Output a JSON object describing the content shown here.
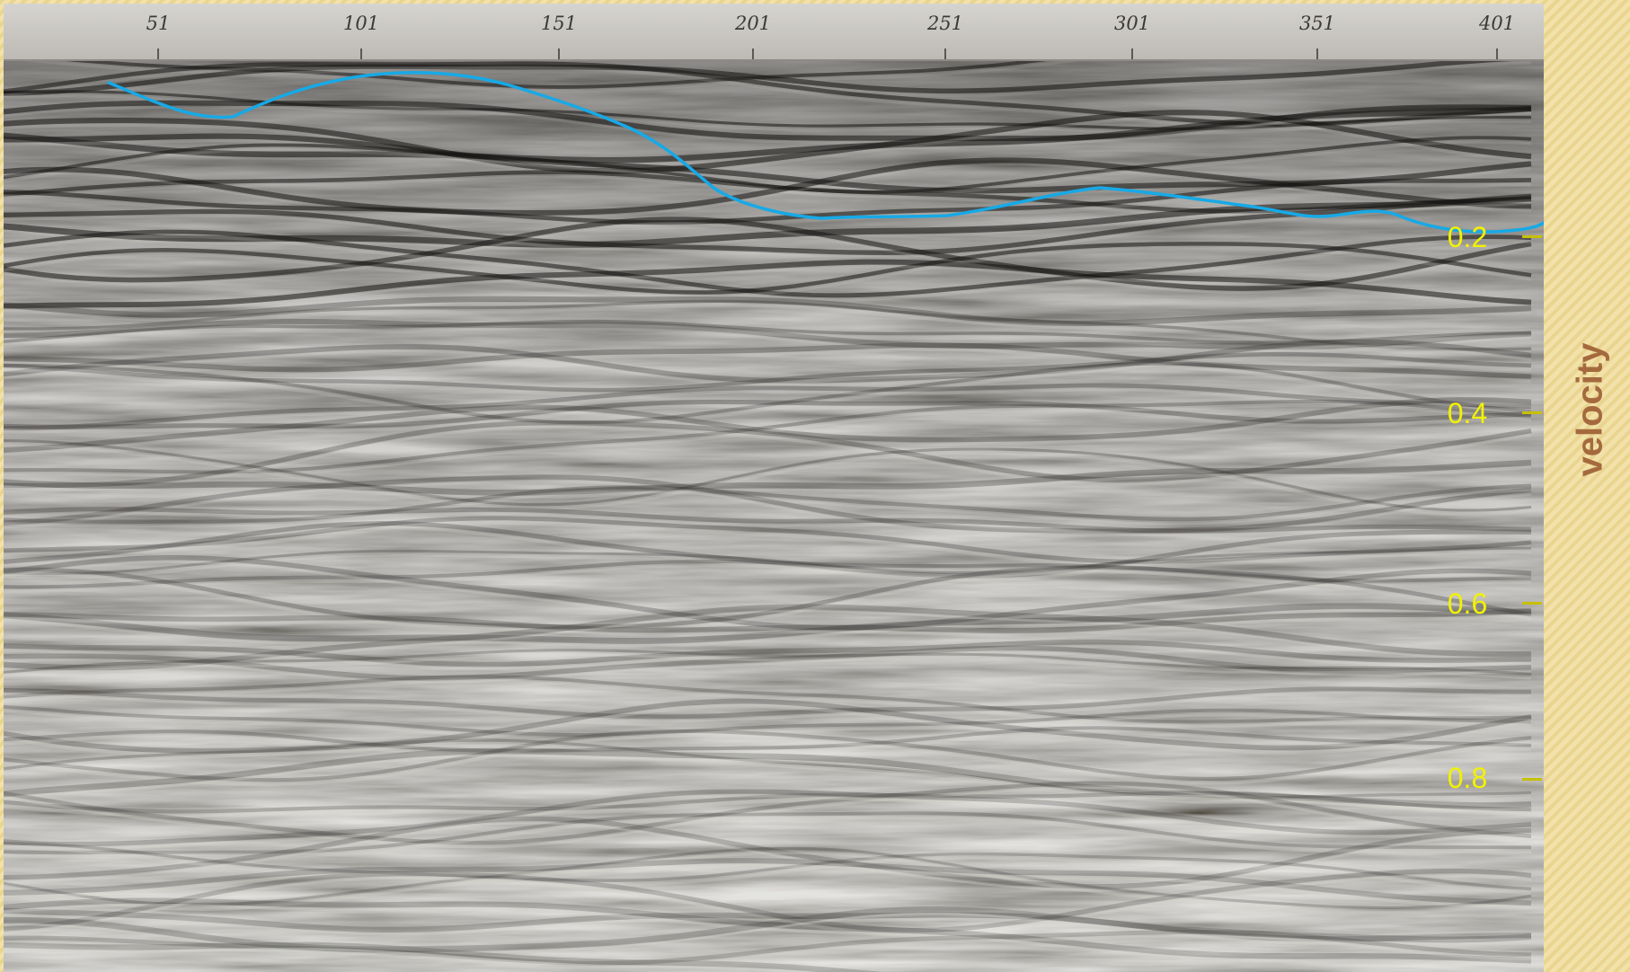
{
  "side_title": "velocity",
  "trace_axis": {
    "labels": [
      "51",
      "101",
      "151",
      "201",
      "251",
      "301",
      "351",
      "401"
    ]
  },
  "time_axis": {
    "labels": [
      "0.2",
      "0.4",
      "0.6",
      "0.8"
    ]
  },
  "colors": {
    "horizon_line": "#17a9e6",
    "time_labels": "#f2f200",
    "side_title": "#a46a3e",
    "border": "#ecd89a"
  }
}
